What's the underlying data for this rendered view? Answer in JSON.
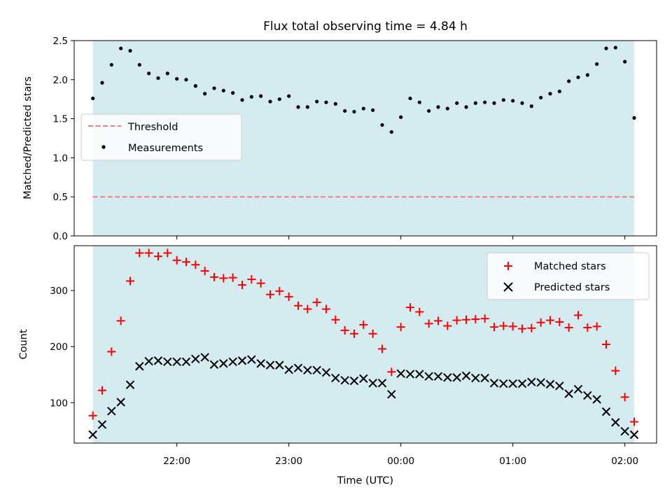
{
  "chart_data": [
    {
      "type": "scatter",
      "title": "Flux total observing time = 4.84 h",
      "xlabel": "",
      "ylabel": "Matched/Predicted stars",
      "ylim": [
        0,
        2.5
      ],
      "yticks": [
        0.0,
        0.5,
        1.0,
        1.5,
        2.0,
        2.5
      ],
      "ytick_labels": [
        "0.0",
        "0.5",
        "1.0",
        "1.5",
        "2.0",
        "2.5"
      ],
      "xlim": [
        "21:05",
        "02:17"
      ],
      "observing_window": [
        "21:15",
        "02:05"
      ],
      "threshold": 0.5,
      "legend": {
        "placement": "center-left",
        "entries": [
          "Threshold",
          "Measurements"
        ]
      },
      "colors": {
        "window": "#d4ebf0",
        "threshold": "#f08080",
        "measurements": "#000000"
      },
      "series": [
        {
          "name": "Measurements",
          "x": [
            "21:15",
            "21:20",
            "21:25",
            "21:30",
            "21:35",
            "21:40",
            "21:45",
            "21:50",
            "21:55",
            "22:00",
            "22:05",
            "22:10",
            "22:15",
            "22:20",
            "22:25",
            "22:30",
            "22:35",
            "22:40",
            "22:45",
            "22:50",
            "22:55",
            "23:00",
            "23:05",
            "23:10",
            "23:15",
            "23:20",
            "23:25",
            "23:30",
            "23:35",
            "23:40",
            "23:45",
            "23:50",
            "23:55",
            "00:00",
            "00:05",
            "00:10",
            "00:15",
            "00:20",
            "00:25",
            "00:30",
            "00:35",
            "00:40",
            "00:45",
            "00:50",
            "00:55",
            "01:00",
            "01:05",
            "01:10",
            "01:15",
            "01:20",
            "01:25",
            "01:30",
            "01:35",
            "01:40",
            "01:45",
            "01:50",
            "01:55",
            "02:00",
            "02:05"
          ],
          "y": [
            1.76,
            1.96,
            2.19,
            2.4,
            2.37,
            2.19,
            2.08,
            2.02,
            2.08,
            2.01,
            2.0,
            1.92,
            1.82,
            1.89,
            1.86,
            1.83,
            1.74,
            1.78,
            1.79,
            1.72,
            1.75,
            1.79,
            1.65,
            1.65,
            1.72,
            1.71,
            1.69,
            1.6,
            1.59,
            1.63,
            1.61,
            1.42,
            1.33,
            1.52,
            1.76,
            1.71,
            1.6,
            1.65,
            1.63,
            1.7,
            1.65,
            1.7,
            1.71,
            1.7,
            1.74,
            1.73,
            1.7,
            1.66,
            1.77,
            1.82,
            1.85,
            1.98,
            2.03,
            2.06,
            2.2,
            2.4,
            2.41,
            2.23,
            1.51
          ]
        }
      ]
    },
    {
      "type": "scatter",
      "title": "",
      "xlabel": "Time (UTC)",
      "ylabel": "Count",
      "ylim": [
        28,
        380
      ],
      "yticks": [
        100,
        200,
        300
      ],
      "ytick_labels": [
        "100",
        "200",
        "300"
      ],
      "xlim": [
        "21:05",
        "02:17"
      ],
      "xticks": [
        "22:00",
        "23:00",
        "00:00",
        "01:00",
        "02:00"
      ],
      "xtick_labels": [
        "22:00",
        "23:00",
        "00:00",
        "01:00",
        "02:00"
      ],
      "observing_window": [
        "21:15",
        "02:05"
      ],
      "legend": {
        "placement": "upper-right",
        "entries": [
          "Matched stars",
          "Predicted stars"
        ]
      },
      "colors": {
        "window": "#d4ebf0",
        "matched": "#ff0000",
        "predicted": "#000000"
      },
      "x": [
        "21:15",
        "21:20",
        "21:25",
        "21:30",
        "21:35",
        "21:40",
        "21:45",
        "21:50",
        "21:55",
        "22:00",
        "22:05",
        "22:10",
        "22:15",
        "22:20",
        "22:25",
        "22:30",
        "22:35",
        "22:40",
        "22:45",
        "22:50",
        "22:55",
        "23:00",
        "23:05",
        "23:10",
        "23:15",
        "23:20",
        "23:25",
        "23:30",
        "23:35",
        "23:40",
        "23:45",
        "23:50",
        "23:55",
        "00:00",
        "00:05",
        "00:10",
        "00:15",
        "00:20",
        "00:25",
        "00:30",
        "00:35",
        "00:40",
        "00:45",
        "00:50",
        "00:55",
        "01:00",
        "01:05",
        "01:10",
        "01:15",
        "01:20",
        "01:25",
        "01:30",
        "01:35",
        "01:40",
        "01:45",
        "01:50",
        "01:55",
        "02:00",
        "02:05"
      ],
      "series": [
        {
          "name": "Matched stars",
          "values": [
            77,
            122,
            191,
            246,
            317,
            367,
            367,
            361,
            367,
            354,
            351,
            346,
            335,
            324,
            322,
            323,
            310,
            320,
            313,
            293,
            299,
            289,
            273,
            267,
            279,
            267,
            248,
            229,
            223,
            239,
            223,
            196,
            155,
            235,
            270,
            262,
            241,
            246,
            237,
            247,
            248,
            249,
            250,
            235,
            237,
            236,
            232,
            233,
            243,
            247,
            244,
            234,
            256,
            234,
            236,
            204,
            157,
            110,
            66
          ]
        },
        {
          "name": "Predicted stars",
          "values": [
            43,
            61,
            85,
            101,
            132,
            165,
            174,
            175,
            173,
            173,
            173,
            178,
            181,
            168,
            170,
            173,
            175,
            177,
            170,
            167,
            167,
            159,
            162,
            158,
            158,
            154,
            144,
            140,
            139,
            143,
            135,
            135,
            115,
            152,
            151,
            151,
            147,
            147,
            145,
            145,
            148,
            144,
            144,
            135,
            134,
            134,
            134,
            137,
            136,
            133,
            130,
            116,
            124,
            113,
            106,
            84,
            65,
            49,
            43
          ]
        }
      ]
    }
  ]
}
